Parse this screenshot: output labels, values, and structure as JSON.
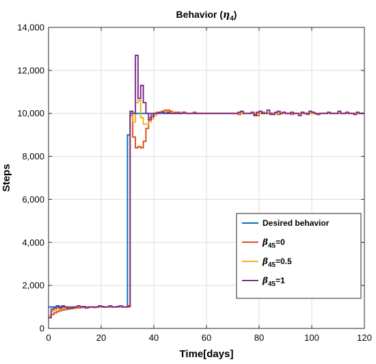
{
  "chart_data": {
    "type": "line",
    "title": "Behavior (",
    "title_symbol": "η",
    "title_subscript": "4",
    "title_suffix": ")",
    "xlabel": "Time[days]",
    "ylabel": "Steps",
    "xlim": [
      0,
      120
    ],
    "ylim": [
      0,
      14000
    ],
    "x_ticks": [
      0,
      20,
      40,
      60,
      80,
      100,
      120
    ],
    "y_ticks": [
      0,
      2000,
      4000,
      6000,
      8000,
      10000,
      12000,
      14000
    ],
    "y_tick_labels": [
      "0",
      "2,000",
      "4,000",
      "6,000",
      "8,000",
      "10,000",
      "12,000",
      "14,000"
    ],
    "x_tick_labels": [
      "0",
      "20",
      "40",
      "60",
      "80",
      "100",
      "120"
    ],
    "grid": true,
    "legend_position": "bottom-right",
    "colors": {
      "desired": "#0072BD",
      "beta0": "#D95319",
      "beta05": "#EDB120",
      "beta1": "#7E2F8E"
    },
    "legend": [
      {
        "text": "Desired behavior",
        "color": "#0072BD"
      },
      {
        "prefix": "β",
        "sub": "45",
        "suffix": "=0",
        "color": "#D95319"
      },
      {
        "prefix": "β",
        "sub": "45",
        "suffix": "=0.5",
        "color": "#EDB120"
      },
      {
        "prefix": "β",
        "sub": "45",
        "suffix": "=1",
        "color": "#7E2F8E"
      }
    ],
    "series": [
      {
        "key": "desired",
        "x": [
          0,
          29,
          30,
          31,
          32,
          33,
          34,
          35,
          36,
          37,
          38,
          39,
          40,
          41,
          42,
          120
        ],
        "y": [
          1000,
          1000,
          9000,
          10000,
          10000,
          10000,
          10000,
          10000,
          10000,
          10000,
          10000,
          10000,
          10000,
          10000,
          10000,
          10000
        ]
      },
      {
        "key": "beta0",
        "x": [
          0,
          1,
          2,
          3,
          4,
          5,
          6,
          7,
          8,
          9,
          10,
          11,
          12,
          13,
          14,
          15,
          16,
          17,
          18,
          19,
          20,
          21,
          22,
          23,
          24,
          25,
          26,
          27,
          28,
          29,
          30,
          31,
          32,
          33,
          34,
          35,
          36,
          37,
          38,
          39,
          40,
          41,
          42,
          43,
          44,
          45,
          46,
          47,
          48,
          49,
          50,
          51,
          52,
          53,
          54,
          55,
          56,
          57,
          58,
          59,
          60,
          61,
          62,
          63,
          64,
          65,
          66,
          67,
          68,
          69,
          70,
          71,
          72,
          73,
          74,
          75,
          76,
          77,
          78,
          79,
          80,
          81,
          82,
          83,
          84,
          85,
          86,
          87,
          88,
          89,
          90,
          91,
          92,
          93,
          94,
          95,
          96,
          97,
          98,
          99,
          100,
          101,
          102,
          103,
          104,
          105,
          106,
          107,
          108,
          109,
          110,
          111,
          112,
          113,
          114,
          115,
          116,
          117,
          118,
          119
        ],
        "y": [
          500,
          650,
          720,
          780,
          820,
          860,
          880,
          900,
          920,
          930,
          950,
          960,
          970,
          970,
          980,
          980,
          990,
          990,
          990,
          1000,
          1000,
          1000,
          1000,
          1000,
          1000,
          1000,
          1000,
          1000,
          1000,
          1000,
          1000,
          9900,
          8900,
          8400,
          8450,
          8400,
          8700,
          9300,
          9800,
          9950,
          10000,
          10050,
          10050,
          10100,
          10150,
          10150,
          10100,
          10050,
          10050,
          10050,
          10000,
          10000,
          10000,
          10000,
          10000,
          10050,
          10000,
          10000,
          10000,
          10000,
          10000,
          10000,
          10000,
          10000,
          10000,
          10000,
          10000,
          10000,
          10000,
          10000,
          10000,
          10000,
          9950,
          10000,
          10000,
          10000,
          10000,
          10000,
          9950,
          9900,
          10000,
          10050,
          10000,
          10000,
          9950,
          10000,
          10000,
          9950,
          10000,
          10050,
          10000,
          10000,
          9950,
          10000,
          10000,
          10000,
          10050,
          10000,
          9950,
          10000,
          10000,
          10000,
          10000,
          10000,
          10000,
          10000,
          10000,
          10000,
          10000,
          10000,
          10000,
          10000,
          10000,
          10000,
          10000,
          10000,
          10000,
          10000,
          10000,
          10000
        ]
      },
      {
        "key": "beta05",
        "x": [
          0,
          1,
          2,
          3,
          4,
          5,
          6,
          7,
          8,
          9,
          10,
          11,
          12,
          13,
          14,
          15,
          16,
          17,
          18,
          19,
          20,
          21,
          22,
          23,
          24,
          25,
          26,
          27,
          28,
          29,
          30,
          31,
          32,
          33,
          34,
          35,
          36,
          37,
          38,
          39,
          40,
          41,
          42,
          43,
          44,
          45,
          46,
          47,
          48,
          49,
          50,
          51,
          52,
          53,
          54,
          55,
          56,
          57,
          58,
          59,
          60,
          61,
          62,
          63,
          64,
          65,
          66,
          67,
          68,
          69,
          70,
          71,
          72,
          73,
          74,
          75,
          76,
          77,
          78,
          79,
          80,
          81,
          82,
          83,
          84,
          85,
          86,
          87,
          88,
          89,
          90,
          91,
          92,
          93,
          94,
          95,
          96,
          97,
          98,
          99,
          100,
          101,
          102,
          103,
          104,
          105,
          106,
          107,
          108,
          109,
          110,
          111,
          112,
          113,
          114,
          115,
          116,
          117,
          118,
          119
        ],
        "y": [
          600,
          800,
          850,
          900,
          900,
          920,
          950,
          970,
          970,
          980,
          990,
          1000,
          1000,
          1000,
          1000,
          1000,
          1000,
          1000,
          1000,
          1000,
          1000,
          1000,
          1000,
          1000,
          1000,
          1000,
          1000,
          1000,
          1000,
          1000,
          1050,
          10100,
          9600,
          10500,
          10600,
          9800,
          9500,
          9500,
          9600,
          9750,
          9900,
          10000,
          10050,
          10050,
          10100,
          10050,
          10050,
          10000,
          10000,
          10000,
          10000,
          10000,
          10000,
          10000,
          10000,
          10000,
          10000,
          10000,
          10000,
          10000,
          10000,
          10000,
          10000,
          10000,
          10000,
          10000,
          10000,
          10000,
          10000,
          10000,
          10000,
          10000,
          10000,
          10000,
          10000,
          10000,
          10000,
          10000,
          10000,
          10000,
          10000,
          10000,
          10000,
          10000,
          10000,
          10000,
          10000,
          10000,
          10000,
          10000,
          10000,
          10000,
          10000,
          10000,
          10000,
          10000,
          10000,
          10000,
          10000,
          10000,
          10000,
          10000,
          10000,
          10000,
          10000,
          10000,
          10000,
          10000,
          10000,
          10000,
          10000,
          10000,
          10000,
          10000,
          10000,
          10000,
          10000,
          10000,
          10000,
          10000
        ]
      },
      {
        "key": "beta1",
        "x": [
          0,
          1,
          2,
          3,
          4,
          5,
          6,
          7,
          8,
          9,
          10,
          11,
          12,
          13,
          14,
          15,
          16,
          17,
          18,
          19,
          20,
          21,
          22,
          23,
          24,
          25,
          26,
          27,
          28,
          29,
          30,
          31,
          32,
          33,
          34,
          35,
          36,
          37,
          38,
          39,
          40,
          41,
          42,
          43,
          44,
          45,
          46,
          47,
          48,
          49,
          50,
          51,
          52,
          53,
          54,
          55,
          56,
          57,
          58,
          59,
          60,
          61,
          62,
          63,
          64,
          65,
          66,
          67,
          68,
          69,
          70,
          71,
          72,
          73,
          74,
          75,
          76,
          77,
          78,
          79,
          80,
          81,
          82,
          83,
          84,
          85,
          86,
          87,
          88,
          89,
          90,
          91,
          92,
          93,
          94,
          95,
          96,
          97,
          98,
          99,
          100,
          101,
          102,
          103,
          104,
          105,
          106,
          107,
          108,
          109,
          110,
          111,
          112,
          113,
          114,
          115,
          116,
          117,
          118,
          119
        ],
        "y": [
          500,
          900,
          950,
          1050,
          950,
          1050,
          1000,
          950,
          950,
          980,
          1000,
          1050,
          1000,
          1020,
          950,
          1000,
          1000,
          980,
          1000,
          1050,
          1020,
          1000,
          1000,
          1050,
          1000,
          1000,
          1020,
          1050,
          1000,
          1000,
          1050,
          10100,
          10000,
          12700,
          10700,
          11300,
          10500,
          10000,
          9700,
          9850,
          10000,
          10000,
          10050,
          10050,
          10000,
          10050,
          10000,
          10000,
          10000,
          10000,
          10000,
          10050,
          10000,
          10000,
          10000,
          10000,
          10000,
          10000,
          10000,
          10000,
          10000,
          10000,
          10000,
          10000,
          10000,
          10000,
          10000,
          10000,
          10000,
          10000,
          10000,
          10000,
          10050,
          10100,
          10000,
          10000,
          10000,
          10050,
          9900,
          10050,
          10100,
          10000,
          10000,
          10150,
          10000,
          9950,
          10050,
          10100,
          10000,
          10050,
          10000,
          10000,
          10050,
          10000,
          10000,
          9900,
          10050,
          10000,
          10000,
          10100,
          10050,
          10000,
          9950,
          10000,
          10000,
          10000,
          10050,
          10000,
          10000,
          10000,
          10100,
          10000,
          10000,
          10050,
          10000,
          10000,
          9950,
          10050,
          10000,
          10000
        ]
      }
    ]
  }
}
